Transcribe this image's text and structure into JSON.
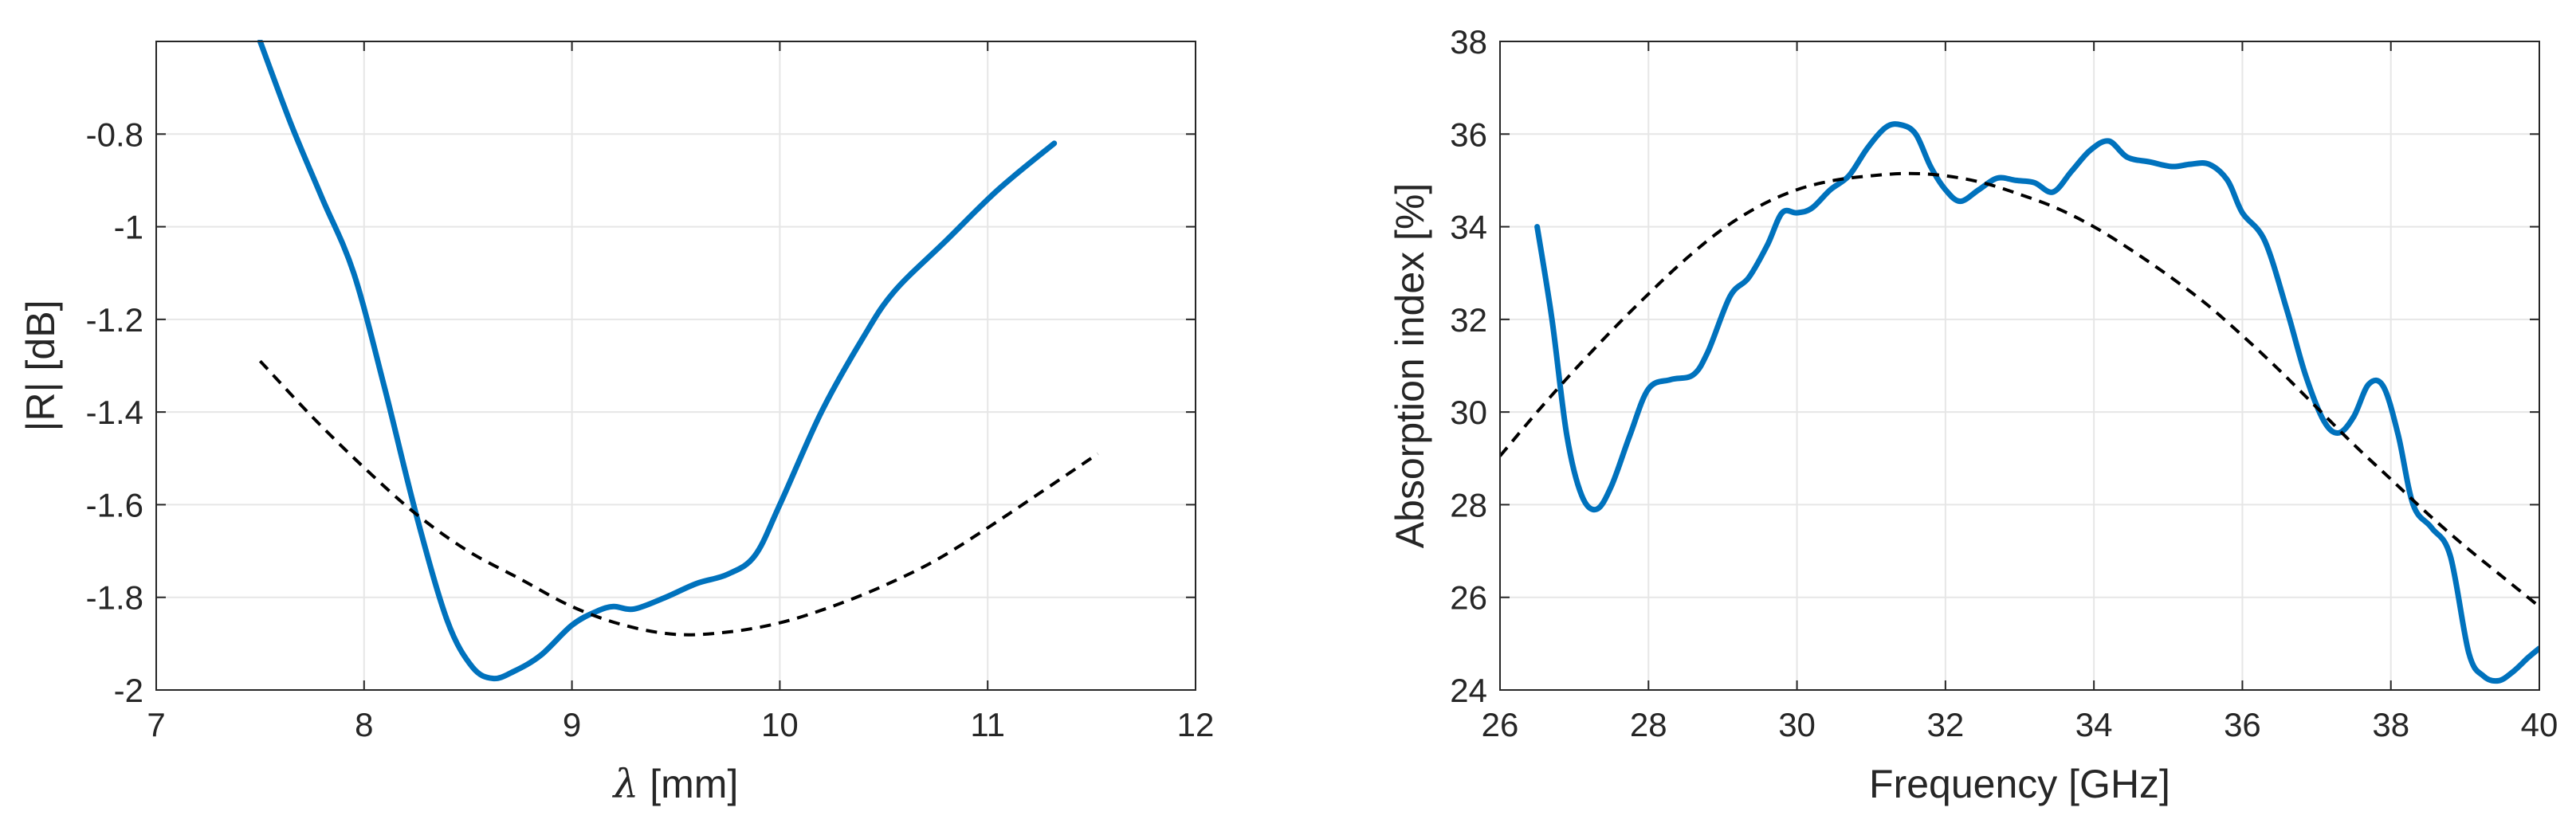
{
  "chart_data": [
    {
      "type": "line",
      "title": "",
      "xlabel_symbol": "λ",
      "xlabel_unit": " [mm]",
      "ylabel": "|R| [dB]",
      "xlim": [
        7,
        12
      ],
      "ylim": [
        -2,
        -0.6
      ],
      "xticks": [
        7,
        8,
        9,
        10,
        11,
        12
      ],
      "xtick_labels": [
        "7",
        "8",
        "9",
        "10",
        "11",
        "12"
      ],
      "yticks": [
        -2,
        -1.8,
        -1.6,
        -1.4,
        -1.2,
        -1,
        -0.8
      ],
      "ytick_labels": [
        "-2",
        "-1.8",
        "-1.6",
        "-1.4",
        "-1.2",
        "-1",
        "-0.8"
      ],
      "grid": true,
      "series": [
        {
          "style": "solid",
          "color": "#0072BD",
          "x": [
            7.5,
            7.65,
            7.8,
            7.95,
            8.1,
            8.25,
            8.4,
            8.52,
            8.62,
            8.72,
            8.85,
            9.0,
            9.12,
            9.2,
            9.3,
            9.45,
            9.6,
            9.75,
            9.88,
            10.0,
            10.2,
            10.4,
            10.55,
            10.8,
            11.05,
            11.32
          ],
          "y": [
            -0.6,
            -0.78,
            -0.94,
            -1.1,
            -1.35,
            -1.62,
            -1.85,
            -1.95,
            -1.975,
            -1.96,
            -1.925,
            -1.86,
            -1.83,
            -1.82,
            -1.825,
            -1.8,
            -1.77,
            -1.75,
            -1.71,
            -1.6,
            -1.4,
            -1.24,
            -1.14,
            -1.03,
            -0.92,
            -0.82
          ]
        },
        {
          "style": "dashed",
          "color": "#000000",
          "x": [
            7.5,
            7.75,
            8.0,
            8.25,
            8.5,
            8.75,
            9.0,
            9.25,
            9.5,
            9.75,
            10.0,
            10.25,
            10.5,
            10.75,
            11.0,
            11.25,
            11.53
          ],
          "y": [
            -1.29,
            -1.41,
            -1.52,
            -1.62,
            -1.7,
            -1.76,
            -1.82,
            -1.86,
            -1.88,
            -1.875,
            -1.855,
            -1.82,
            -1.775,
            -1.72,
            -1.65,
            -1.575,
            -1.49
          ]
        }
      ]
    },
    {
      "type": "line",
      "title": "",
      "xlabel": "Frequency [GHz]",
      "ylabel": "Absorption index [%]",
      "xlim": [
        26,
        40
      ],
      "ylim": [
        24,
        38
      ],
      "xticks": [
        26,
        28,
        30,
        32,
        34,
        36,
        38,
        40
      ],
      "xtick_labels": [
        "26",
        "28",
        "30",
        "32",
        "34",
        "36",
        "38",
        "40"
      ],
      "yticks": [
        24,
        26,
        28,
        30,
        32,
        34,
        36,
        38
      ],
      "ytick_labels": [
        "24",
        "26",
        "28",
        "30",
        "32",
        "34",
        "36",
        "38"
      ],
      "grid": true,
      "series": [
        {
          "style": "solid",
          "color": "#0072BD",
          "x": [
            26.5,
            26.7,
            26.9,
            27.1,
            27.3,
            27.5,
            27.75,
            28.0,
            28.3,
            28.6,
            28.8,
            29.1,
            29.35,
            29.6,
            29.8,
            30.0,
            30.2,
            30.45,
            30.7,
            30.95,
            31.2,
            31.4,
            31.6,
            31.8,
            32.0,
            32.2,
            32.45,
            32.7,
            32.95,
            33.2,
            33.45,
            33.7,
            33.95,
            34.2,
            34.45,
            34.75,
            35.05,
            35.3,
            35.55,
            35.8,
            36.0,
            36.3,
            36.6,
            36.85,
            37.1,
            37.3,
            37.5,
            37.7,
            37.9,
            38.1,
            38.3,
            38.55,
            38.8,
            39.05,
            39.25,
            39.45,
            39.65,
            39.85,
            40.0
          ],
          "y": [
            34.0,
            32.0,
            29.5,
            28.2,
            27.9,
            28.4,
            29.5,
            30.5,
            30.7,
            30.8,
            31.3,
            32.5,
            32.9,
            33.6,
            34.3,
            34.3,
            34.4,
            34.8,
            35.1,
            35.7,
            36.15,
            36.2,
            36.0,
            35.3,
            34.8,
            34.55,
            34.8,
            35.05,
            35.0,
            34.95,
            34.75,
            35.2,
            35.65,
            35.85,
            35.5,
            35.4,
            35.3,
            35.35,
            35.35,
            35.0,
            34.3,
            33.7,
            32.2,
            30.8,
            29.8,
            29.55,
            29.9,
            30.6,
            30.55,
            29.5,
            28.0,
            27.5,
            26.9,
            24.8,
            24.3,
            24.2,
            24.4,
            24.7,
            24.9
          ]
        },
        {
          "style": "dashed",
          "color": "#000000",
          "x": [
            26.0,
            26.5,
            27.0,
            27.5,
            28.0,
            28.5,
            29.0,
            29.5,
            30.0,
            30.5,
            31.0,
            31.5,
            32.0,
            32.5,
            33.0,
            33.5,
            34.0,
            34.5,
            35.0,
            35.5,
            36.0,
            36.5,
            37.0,
            37.5,
            38.0,
            38.5,
            39.0,
            39.5,
            40.0
          ],
          "y": [
            29.05,
            30.0,
            30.9,
            31.75,
            32.55,
            33.3,
            33.95,
            34.45,
            34.8,
            35.0,
            35.1,
            35.15,
            35.1,
            34.95,
            34.7,
            34.4,
            34.0,
            33.5,
            32.95,
            32.35,
            31.65,
            30.9,
            30.1,
            29.3,
            28.55,
            27.8,
            27.1,
            26.45,
            25.8
          ]
        }
      ]
    }
  ]
}
